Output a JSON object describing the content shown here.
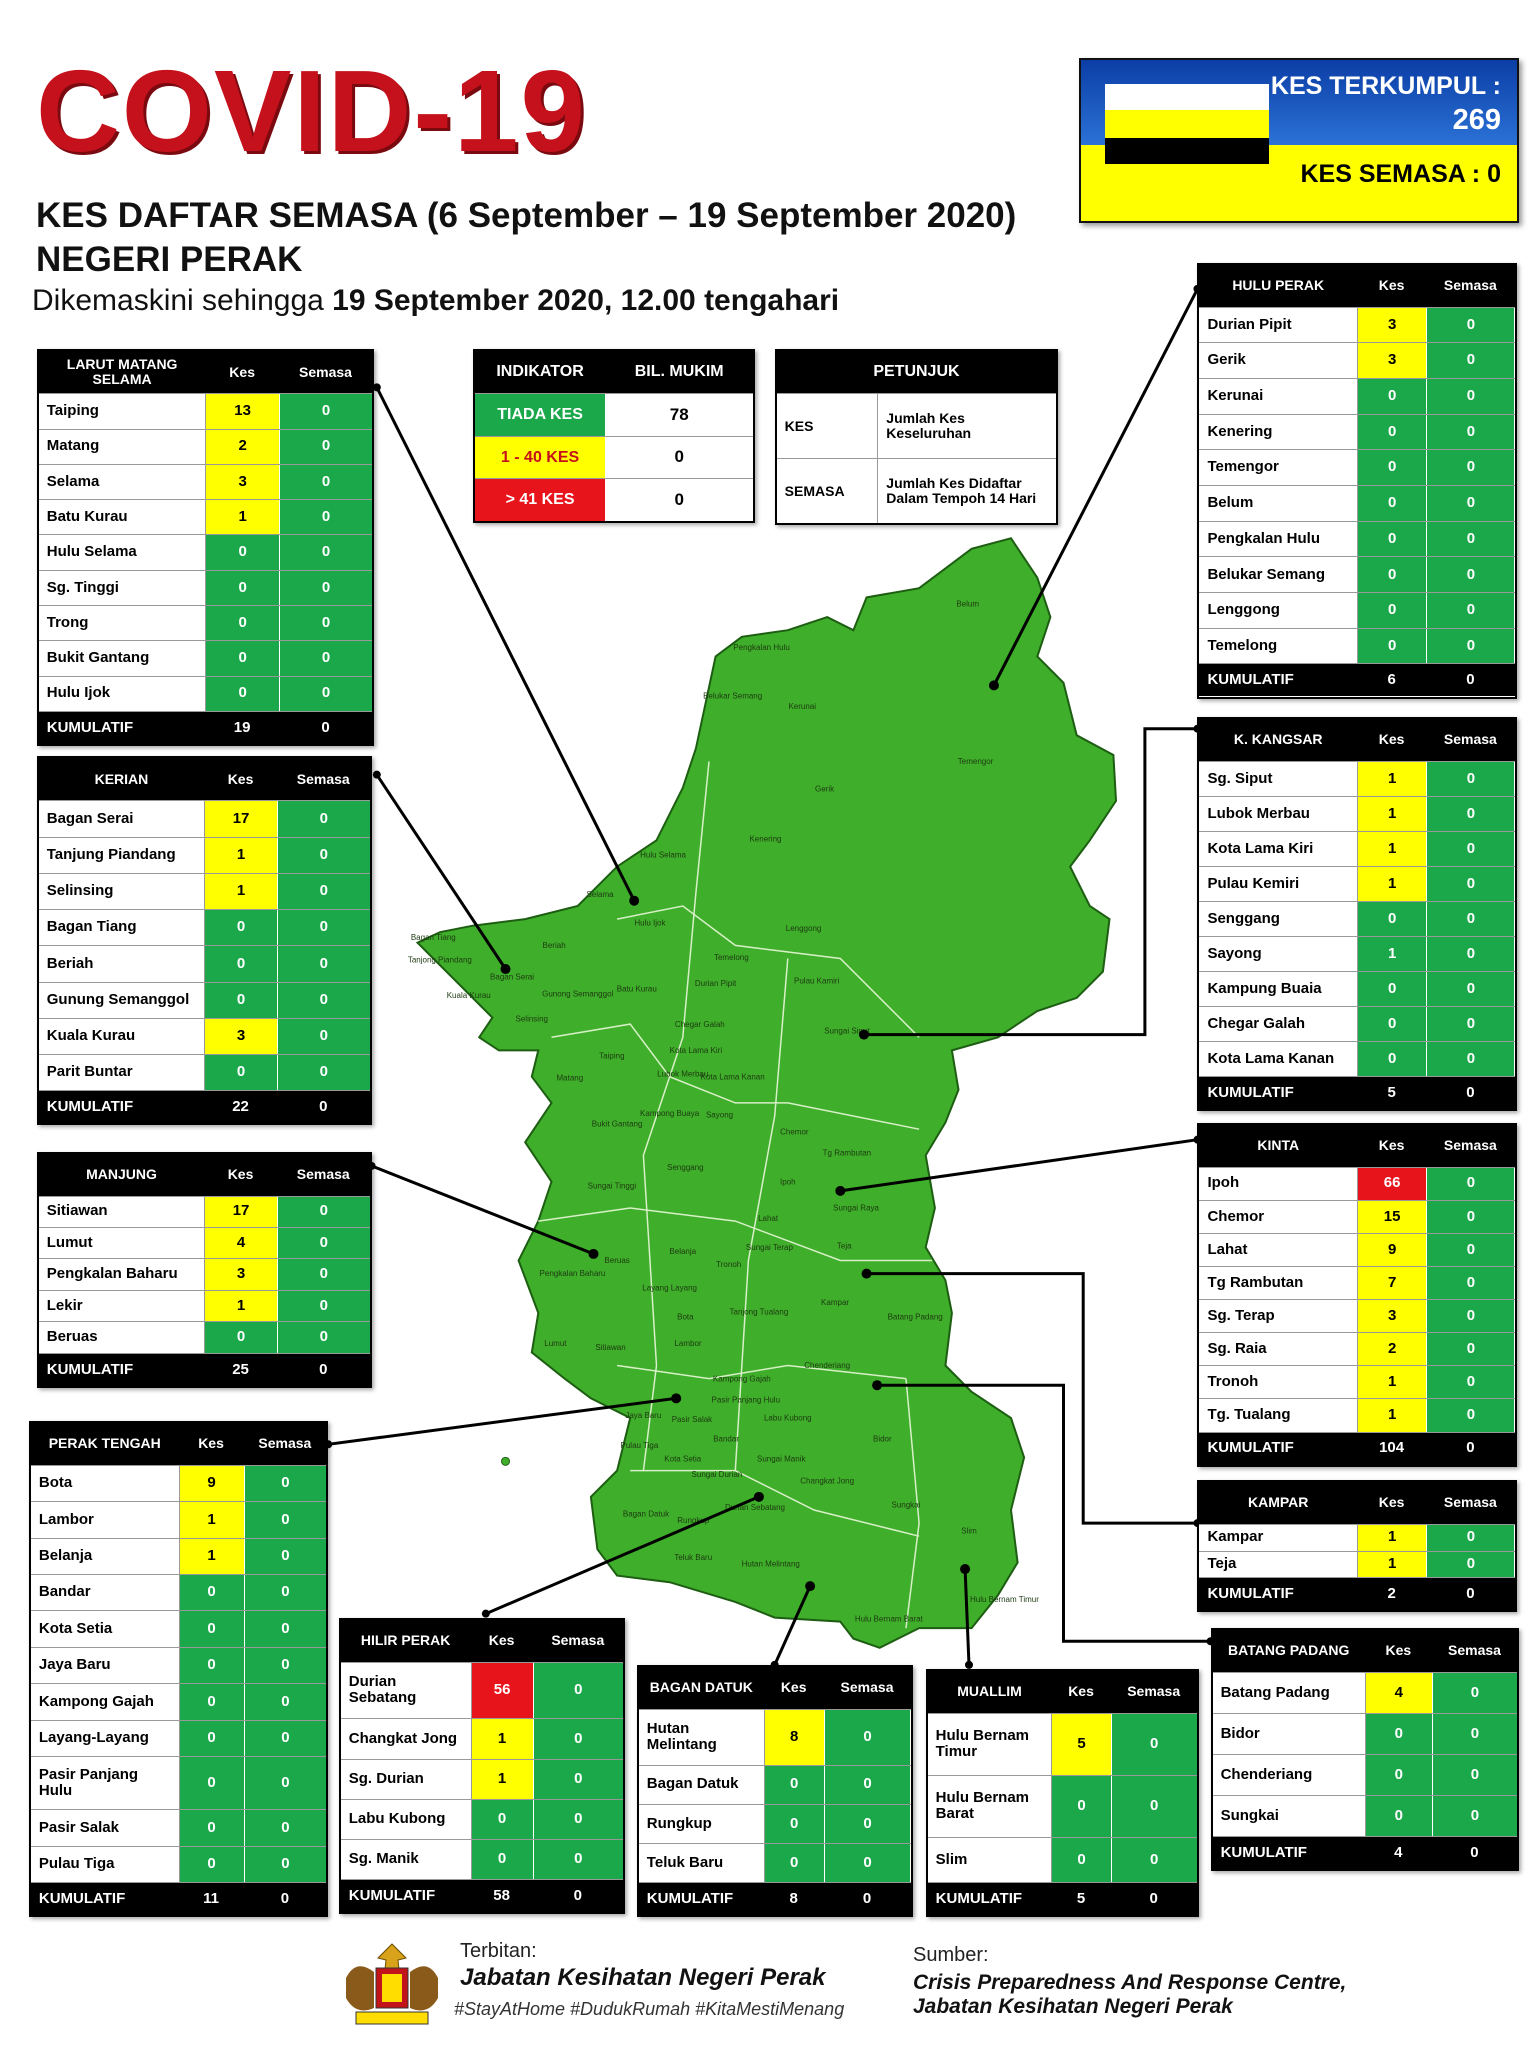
{
  "header": {
    "title": "COVID-19",
    "subtitle": "KES DAFTAR SEMASA (6 September – 19 September 2020)",
    "state": "NEGERI PERAK",
    "updated_prefix": "Dikemaskini sehingga",
    "updated_date": "19 September 2020, 12.00 tengahari"
  },
  "summary": {
    "total_label": "KES TERKUMPUL :",
    "total": 269,
    "active_label": "KES SEMASA :",
    "active": 0
  },
  "indicator": {
    "headers": [
      "INDIKATOR",
      "BIL. MUKIM"
    ],
    "rows": [
      {
        "label": "TIADA KES",
        "color": "#1aa84b",
        "value": 78
      },
      {
        "label": "1 - 40 KES",
        "color": "#ffff00",
        "value": 0
      },
      {
        "label": "> 41 KES",
        "color": "#e8141b",
        "value": 0
      }
    ]
  },
  "legend": {
    "title": "PETUNJUK",
    "rows": [
      [
        "KES",
        "Jumlah Kes Keseluruhan"
      ],
      [
        "SEMASA",
        "Jumlah Kes Didaftar Dalam Tempoh 14 Hari"
      ]
    ]
  },
  "districts": [
    {
      "name": "LARUT MATANG SELAMA",
      "columns": [
        "Kes",
        "Semasa"
      ],
      "rows": [
        {
          "name": "Taiping",
          "kes": 13,
          "semasa": 0,
          "color": "#ffff00"
        },
        {
          "name": "Matang",
          "kes": 2,
          "semasa": 0,
          "color": "#ffff00"
        },
        {
          "name": "Selama",
          "kes": 3,
          "semasa": 0,
          "color": "#ffff00"
        },
        {
          "name": "Batu Kurau",
          "kes": 1,
          "semasa": 0,
          "color": "#ffff00"
        },
        {
          "name": "Hulu Selama",
          "kes": 0,
          "semasa": 0,
          "color": "#1aa84b"
        },
        {
          "name": "Sg. Tinggi",
          "kes": 0,
          "semasa": 0,
          "color": "#1aa84b"
        },
        {
          "name": "Trong",
          "kes": 0,
          "semasa": 0,
          "color": "#1aa84b"
        },
        {
          "name": "Bukit Gantang",
          "kes": 0,
          "semasa": 0,
          "color": "#1aa84b"
        },
        {
          "name": "Hulu Ijok",
          "kes": 0,
          "semasa": 0,
          "color": "#1aa84b"
        }
      ],
      "total_label": "KUMULATIF",
      "total_kes": 19,
      "total_semasa": 0
    },
    {
      "name": "KERIAN",
      "columns": [
        "Kes",
        "Semasa"
      ],
      "rows": [
        {
          "name": "Bagan Serai",
          "kes": 17,
          "semasa": 0,
          "color": "#ffff00"
        },
        {
          "name": "Tanjung Piandang",
          "kes": 1,
          "semasa": 0,
          "color": "#ffff00"
        },
        {
          "name": "Selinsing",
          "kes": 1,
          "semasa": 0,
          "color": "#ffff00"
        },
        {
          "name": "Bagan Tiang",
          "kes": 0,
          "semasa": 0,
          "color": "#1aa84b"
        },
        {
          "name": "Beriah",
          "kes": 0,
          "semasa": 0,
          "color": "#1aa84b"
        },
        {
          "name": "Gunung Semanggol",
          "kes": 0,
          "semasa": 0,
          "color": "#1aa84b"
        },
        {
          "name": "Kuala Kurau",
          "kes": 3,
          "semasa": 0,
          "color": "#ffff00"
        },
        {
          "name": "Parit Buntar",
          "kes": 0,
          "semasa": 0,
          "color": "#1aa84b"
        }
      ],
      "total_label": "KUMULATIF",
      "total_kes": 22,
      "total_semasa": 0
    },
    {
      "name": "MANJUNG",
      "columns": [
        "Kes",
        "Semasa"
      ],
      "rows": [
        {
          "name": "Sitiawan",
          "kes": 17,
          "semasa": 0,
          "color": "#ffff00"
        },
        {
          "name": "Lumut",
          "kes": 4,
          "semasa": 0,
          "color": "#ffff00"
        },
        {
          "name": "Pengkalan Baharu",
          "kes": 3,
          "semasa": 0,
          "color": "#ffff00"
        },
        {
          "name": "Lekir",
          "kes": 1,
          "semasa": 0,
          "color": "#ffff00"
        },
        {
          "name": "Beruas",
          "kes": 0,
          "semasa": 0,
          "color": "#1aa84b"
        }
      ],
      "total_label": "KUMULATIF",
      "total_kes": 25,
      "total_semasa": 0
    },
    {
      "name": "PERAK TENGAH",
      "columns": [
        "Kes",
        "Semasa"
      ],
      "rows": [
        {
          "name": "Bota",
          "kes": 9,
          "semasa": 0,
          "color": "#ffff00"
        },
        {
          "name": "Lambor",
          "kes": 1,
          "semasa": 0,
          "color": "#ffff00"
        },
        {
          "name": "Belanja",
          "kes": 1,
          "semasa": 0,
          "color": "#ffff00"
        },
        {
          "name": "Bandar",
          "kes": 0,
          "semasa": 0,
          "color": "#1aa84b"
        },
        {
          "name": "Kota Setia",
          "kes": 0,
          "semasa": 0,
          "color": "#1aa84b"
        },
        {
          "name": "Jaya Baru",
          "kes": 0,
          "semasa": 0,
          "color": "#1aa84b"
        },
        {
          "name": "Kampong Gajah",
          "kes": 0,
          "semasa": 0,
          "color": "#1aa84b"
        },
        {
          "name": "Layang-Layang",
          "kes": 0,
          "semasa": 0,
          "color": "#1aa84b"
        },
        {
          "name": "Pasir Panjang Hulu",
          "kes": 0,
          "semasa": 0,
          "color": "#1aa84b"
        },
        {
          "name": "Pasir Salak",
          "kes": 0,
          "semasa": 0,
          "color": "#1aa84b"
        },
        {
          "name": "Pulau Tiga",
          "kes": 0,
          "semasa": 0,
          "color": "#1aa84b"
        }
      ],
      "total_label": "KUMULATIF",
      "total_kes": 11,
      "total_semasa": 0
    },
    {
      "name": "HILIR PERAK",
      "columns": [
        "Kes",
        "Semasa"
      ],
      "rows": [
        {
          "name": "Durian Sebatang",
          "kes": 56,
          "semasa": 0,
          "color": "#e8141b"
        },
        {
          "name": "Changkat Jong",
          "kes": 1,
          "semasa": 0,
          "color": "#ffff00"
        },
        {
          "name": "Sg. Durian",
          "kes": 1,
          "semasa": 0,
          "color": "#ffff00"
        },
        {
          "name": "Labu Kubong",
          "kes": 0,
          "semasa": 0,
          "color": "#1aa84b"
        },
        {
          "name": "Sg. Manik",
          "kes": 0,
          "semasa": 0,
          "color": "#1aa84b"
        }
      ],
      "total_label": "KUMULATIF",
      "total_kes": 58,
      "total_semasa": 0
    },
    {
      "name": "BAGAN DATUK",
      "columns": [
        "Kes",
        "Semasa"
      ],
      "rows": [
        {
          "name": "Hutan Melintang",
          "kes": 8,
          "semasa": 0,
          "color": "#ffff00"
        },
        {
          "name": "Bagan Datuk",
          "kes": 0,
          "semasa": 0,
          "color": "#1aa84b"
        },
        {
          "name": "Rungkup",
          "kes": 0,
          "semasa": 0,
          "color": "#1aa84b"
        },
        {
          "name": "Teluk Baru",
          "kes": 0,
          "semasa": 0,
          "color": "#1aa84b"
        }
      ],
      "total_label": "KUMULATIF",
      "total_kes": 8,
      "total_semasa": 0
    },
    {
      "name": "MUALLIM",
      "columns": [
        "Kes",
        "Semasa"
      ],
      "rows": [
        {
          "name": "Hulu Bernam Timur",
          "kes": 5,
          "semasa": 0,
          "color": "#ffff00"
        },
        {
          "name": "Hulu Bernam Barat",
          "kes": 0,
          "semasa": 0,
          "color": "#1aa84b"
        },
        {
          "name": "Slim",
          "kes": 0,
          "semasa": 0,
          "color": "#1aa84b"
        }
      ],
      "total_label": "KUMULATIF",
      "total_kes": 5,
      "total_semasa": 0
    },
    {
      "name": "BATANG PADANG",
      "columns": [
        "Kes",
        "Semasa"
      ],
      "rows": [
        {
          "name": "Batang Padang",
          "kes": 4,
          "semasa": 0,
          "color": "#ffff00"
        },
        {
          "name": "Bidor",
          "kes": 0,
          "semasa": 0,
          "color": "#1aa84b"
        },
        {
          "name": "Chenderiang",
          "kes": 0,
          "semasa": 0,
          "color": "#1aa84b"
        },
        {
          "name": "Sungkai",
          "kes": 0,
          "semasa": 0,
          "color": "#1aa84b"
        }
      ],
      "total_label": "KUMULATIF",
      "total_kes": 4,
      "total_semasa": 0
    },
    {
      "name": "HULU PERAK",
      "columns": [
        "Kes",
        "Semasa"
      ],
      "rows": [
        {
          "name": "Durian Pipit",
          "kes": 3,
          "semasa": 0,
          "color": "#ffff00"
        },
        {
          "name": "Gerik",
          "kes": 3,
          "semasa": 0,
          "color": "#ffff00"
        },
        {
          "name": "Kerunai",
          "kes": 0,
          "semasa": 0,
          "color": "#1aa84b"
        },
        {
          "name": "Kenering",
          "kes": 0,
          "semasa": 0,
          "color": "#1aa84b"
        },
        {
          "name": "Temengor",
          "kes": 0,
          "semasa": 0,
          "color": "#1aa84b"
        },
        {
          "name": "Belum",
          "kes": 0,
          "semasa": 0,
          "color": "#1aa84b"
        },
        {
          "name": "Pengkalan Hulu",
          "kes": 0,
          "semasa": 0,
          "color": "#1aa84b"
        },
        {
          "name": "Belukar Semang",
          "kes": 0,
          "semasa": 0,
          "color": "#1aa84b"
        },
        {
          "name": "Lenggong",
          "kes": 0,
          "semasa": 0,
          "color": "#1aa84b"
        },
        {
          "name": "Temelong",
          "kes": 0,
          "semasa": 0,
          "color": "#1aa84b"
        }
      ],
      "total_label": "KUMULATIF",
      "total_kes": 6,
      "total_semasa": 0
    },
    {
      "name": "K. KANGSAR",
      "columns": [
        "Kes",
        "Semasa"
      ],
      "rows": [
        {
          "name": "Sg. Siput",
          "kes": 1,
          "semasa": 0,
          "color": "#ffff00"
        },
        {
          "name": "Lubok Merbau",
          "kes": 1,
          "semasa": 0,
          "color": "#ffff00"
        },
        {
          "name": "Kota Lama Kiri",
          "kes": 1,
          "semasa": 0,
          "color": "#ffff00"
        },
        {
          "name": "Pulau Kemiri",
          "kes": 1,
          "semasa": 0,
          "color": "#ffff00"
        },
        {
          "name": "Senggang",
          "kes": 0,
          "semasa": 0,
          "color": "#1aa84b"
        },
        {
          "name": "Sayong",
          "kes": 1,
          "semasa": 0,
          "color": "#1aa84b"
        },
        {
          "name": "Kampung Buaia",
          "kes": 0,
          "semasa": 0,
          "color": "#1aa84b"
        },
        {
          "name": "Chegar Galah",
          "kes": 0,
          "semasa": 0,
          "color": "#1aa84b"
        },
        {
          "name": "Kota Lama Kanan",
          "kes": 0,
          "semasa": 0,
          "color": "#1aa84b"
        }
      ],
      "total_label": "KUMULATIF",
      "total_kes": 5,
      "total_semasa": 0
    },
    {
      "name": "KINTA",
      "columns": [
        "Kes",
        "Semasa"
      ],
      "rows": [
        {
          "name": "Ipoh",
          "kes": 66,
          "semasa": 0,
          "color": "#e8141b"
        },
        {
          "name": "Chemor",
          "kes": 15,
          "semasa": 0,
          "color": "#ffff00"
        },
        {
          "name": "Lahat",
          "kes": 9,
          "semasa": 0,
          "color": "#ffff00"
        },
        {
          "name": "Tg Rambutan",
          "kes": 7,
          "semasa": 0,
          "color": "#ffff00"
        },
        {
          "name": "Sg. Terap",
          "kes": 3,
          "semasa": 0,
          "color": "#ffff00"
        },
        {
          "name": "Sg. Raia",
          "kes": 2,
          "semasa": 0,
          "color": "#ffff00"
        },
        {
          "name": "Tronoh",
          "kes": 1,
          "semasa": 0,
          "color": "#ffff00"
        },
        {
          "name": "Tg. Tualang",
          "kes": 1,
          "semasa": 0,
          "color": "#ffff00"
        }
      ],
      "total_label": "KUMULATIF",
      "total_kes": 104,
      "total_semasa": 0
    },
    {
      "name": "KAMPAR",
      "columns": [
        "Kes",
        "Semasa"
      ],
      "rows": [
        {
          "name": "Kampar",
          "kes": 1,
          "semasa": 0,
          "color": "#ffff00"
        },
        {
          "name": "Teja",
          "kes": 1,
          "semasa": 0,
          "color": "#ffff00"
        }
      ],
      "total_label": "KUMULATIF",
      "total_kes": 2,
      "total_semasa": 0
    }
  ],
  "map": {
    "labels": [
      "Belum",
      "Pengkalan Hulu",
      "Belukar Semang",
      "Kerunai",
      "Temengor",
      "Gerik",
      "Kenering",
      "Hulu Selama",
      "Selama",
      "Hulu Ijok",
      "Lenggong",
      "Bagan Tiang",
      "Tanjong Piandang",
      "Beriah",
      "Temelong",
      "Durian Pipit",
      "Pulau Kamiri",
      "Bagan Serai",
      "Gunong Semanggol",
      "Batu Kurau",
      "Kuala Kurau",
      "Sungai Siput",
      "Chegar Galah",
      "Selinsing",
      "Taiping",
      "Kota Lama Kiri",
      "Lubok Merbau",
      "Kota Lama Kanan",
      "Matang",
      "Chemor",
      "Bukit Gantang",
      "Kampong Buaya",
      "Sayong",
      "Tg Rambutan",
      "Senggang",
      "Ipoh",
      "Sungai Tinggi",
      "Sungai Raya",
      "Lahat",
      "Sungai Terap",
      "Teja",
      "Beruas",
      "Pengkalan Baharu",
      "Belanja",
      "Tronoh",
      "Kampar",
      "Layang Layang",
      "Tanjong Tualang",
      "Bota",
      "Batang Padang",
      "Lumut",
      "Sitiawan",
      "Lambor",
      "Chenderiang",
      "Kampong Gajah",
      "Pasir Panjang Hulu",
      "Jaya Baru",
      "Pasir Salak",
      "Labu Kubong",
      "Bidor",
      "Bandar",
      "Pulau Tiga",
      "Kota Setia",
      "Sungai Durian",
      "Sungai Manik",
      "Changkat Jong",
      "Sungkai",
      "Bagan Datuk",
      "Durian Sebatang",
      "Rungkup",
      "Teluk Baru",
      "Slim",
      "Hutan Melintang",
      "Hulu Bernam Timur",
      "Hulu Bernam Barat"
    ]
  },
  "footer": {
    "published_label": "Terbitan:",
    "publisher": "Jabatan Kesihatan Negeri Perak",
    "hashtags": "#StayAtHome #DudukRumah #KitaMestiMenang",
    "source_label": "Sumber:",
    "source_1": "Crisis Preparedness And Response Centre,",
    "source_2": "Jabatan Kesihatan Negeri Perak"
  }
}
